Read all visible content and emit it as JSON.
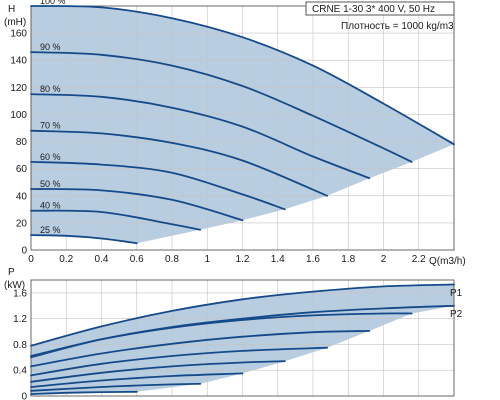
{
  "chart_data": [
    {
      "type": "line",
      "ylabel": "H",
      "yunit": "(mH)",
      "xlabel": "Q(m3/h)",
      "xlim": [
        0,
        2.4
      ],
      "ylim": [
        0,
        180
      ],
      "xticks": [
        0,
        0.2,
        0.4,
        0.6,
        0.8,
        1,
        1.2,
        1.4,
        1.6,
        1.8,
        2,
        2.2
      ],
      "yticks": [
        0,
        20,
        40,
        60,
        80,
        100,
        120,
        140,
        160
      ],
      "grid": true,
      "info_line1": "CRNE 1-30    3* 400 V, 50 Hz",
      "info_line2": "Плотность = 1000 kg/m3",
      "colors": {
        "curve": "#154a8a",
        "fill": "#b9cde0",
        "grid": "#c4c4c4"
      },
      "series": [
        {
          "name": "100 %",
          "x": [
            0,
            0.4,
            0.8,
            1.2,
            1.6,
            2.0,
            2.4
          ],
          "y": [
            180,
            179,
            171,
            157,
            136,
            108,
            78
          ]
        },
        {
          "name": "90 %",
          "x": [
            0,
            0.4,
            0.8,
            1.2,
            1.6,
            2.0,
            2.16
          ],
          "y": [
            146,
            144,
            136,
            121,
            99,
            75,
            65
          ]
        },
        {
          "name": "80 %",
          "x": [
            0,
            0.4,
            0.8,
            1.2,
            1.6,
            1.92
          ],
          "y": [
            115,
            113,
            105,
            91,
            69,
            53
          ]
        },
        {
          "name": "70 %",
          "x": [
            0,
            0.4,
            0.8,
            1.2,
            1.68
          ],
          "y": [
            88,
            86,
            79,
            66,
            40
          ]
        },
        {
          "name": "60 %",
          "x": [
            0,
            0.4,
            0.8,
            1.2,
            1.44
          ],
          "y": [
            65,
            63,
            57,
            41,
            30
          ]
        },
        {
          "name": "50 %",
          "x": [
            0,
            0.4,
            0.8,
            1.2
          ],
          "y": [
            45,
            44,
            37,
            22
          ]
        },
        {
          "name": "40 %",
          "x": [
            0,
            0.4,
            0.8,
            0.96
          ],
          "y": [
            29,
            28,
            19,
            15
          ]
        },
        {
          "name": "25 %",
          "x": [
            0,
            0.2,
            0.4,
            0.6
          ],
          "y": [
            11,
            10.5,
            8.5,
            5
          ]
        }
      ]
    },
    {
      "type": "line",
      "ylabel": "P",
      "yunit": "(kW)",
      "xlim": [
        0,
        2.4
      ],
      "ylim": [
        0,
        1.8
      ],
      "yticks": [
        0,
        0.4,
        0.8,
        1.2,
        1.6
      ],
      "grid": true,
      "line_labels": [
        "P1",
        "P2"
      ],
      "series": [
        {
          "x": [
            0,
            0.4,
            0.8,
            1.2,
            1.6,
            2.0,
            2.4
          ],
          "y": [
            0.78,
            1.08,
            1.32,
            1.5,
            1.62,
            1.7,
            1.73
          ]
        },
        {
          "x": [
            0,
            0.4,
            0.8,
            1.2,
            1.6,
            2.0,
            2.4
          ],
          "y": [
            0.6,
            0.88,
            1.07,
            1.2,
            1.3,
            1.36,
            1.4
          ]
        },
        {
          "x": [
            0,
            0.4,
            0.8,
            1.2,
            1.6,
            2.0,
            2.16
          ],
          "y": [
            0.62,
            0.88,
            1.06,
            1.18,
            1.25,
            1.28,
            1.28
          ]
        },
        {
          "x": [
            0,
            0.4,
            0.8,
            1.2,
            1.6,
            1.92
          ],
          "y": [
            0.46,
            0.66,
            0.81,
            0.92,
            0.99,
            1.01
          ]
        },
        {
          "x": [
            0,
            0.4,
            0.8,
            1.2,
            1.68
          ],
          "y": [
            0.32,
            0.5,
            0.62,
            0.7,
            0.75
          ]
        },
        {
          "x": [
            0,
            0.4,
            0.8,
            1.2,
            1.44
          ],
          "y": [
            0.22,
            0.36,
            0.46,
            0.52,
            0.54
          ]
        },
        {
          "x": [
            0,
            0.4,
            0.8,
            1.2
          ],
          "y": [
            0.14,
            0.24,
            0.31,
            0.35
          ]
        },
        {
          "x": [
            0,
            0.4,
            0.8,
            0.96
          ],
          "y": [
            0.08,
            0.14,
            0.18,
            0.19
          ]
        },
        {
          "x": [
            0,
            0.2,
            0.4,
            0.6
          ],
          "y": [
            0.03,
            0.05,
            0.06,
            0.065
          ]
        }
      ]
    }
  ]
}
